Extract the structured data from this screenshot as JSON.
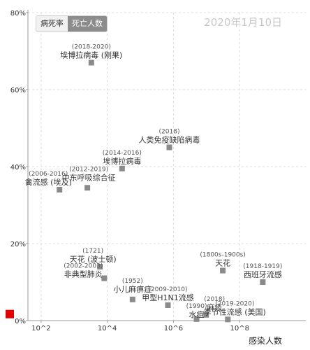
{
  "controls": {
    "tab_case_fatality": "病死率",
    "tab_deaths": "死亡人数",
    "selected": "死亡人数"
  },
  "date_label": "2020年1月10日",
  "chart_data": {
    "type": "scatter",
    "xlabel": "感染人数",
    "ylabel": "",
    "xscale": "log",
    "xlim": [
      40,
      10000000000
    ],
    "ylim": [
      0,
      0.8
    ],
    "x_ticks": [
      {
        "value": 100,
        "label": "10^2"
      },
      {
        "value": 10000,
        "label": "10^4"
      },
      {
        "value": 1000000,
        "label": "10^6"
      },
      {
        "value": 100000000,
        "label": "10^8"
      }
    ],
    "y_ticks": [
      {
        "value": 0,
        "label": "0%"
      },
      {
        "value": 0.2,
        "label": "20%"
      },
      {
        "value": 0.4,
        "label": "40%"
      },
      {
        "value": 0.6,
        "label": "60%"
      },
      {
        "value": 0.8,
        "label": "80%"
      }
    ],
    "grid": true,
    "colors": {
      "points": "#8a8a8a",
      "highlight": "#e00000",
      "grid": "#dddddd"
    },
    "highlight_point": {
      "x": 41,
      "y": 0.017
    },
    "points": [
      {
        "name": "埃博拉病毒 (刚果)",
        "years": "(2018-2020)",
        "x": 3300,
        "y": 0.67
      },
      {
        "name": "人类免疫缺陷病毒",
        "years": "(2018)",
        "x": 750000,
        "y": 0.45
      },
      {
        "name": "埃博拉病毒",
        "years": "(2014-2016)",
        "x": 28000,
        "y": 0.395
      },
      {
        "name": "中东呼吸综合征",
        "years": "(2012-2019)",
        "x": 2500,
        "y": 0.345
      },
      {
        "name": "禽流感 (埃及)",
        "years": "(2006-2016)",
        "x": 360,
        "y": 0.34
      },
      {
        "name": "天花 (波士顿)",
        "years": "(1721)",
        "x": 6000,
        "y": 0.14
      },
      {
        "name": "非典型肺炎",
        "years": "(2002-2003)",
        "x": 8100,
        "y": 0.11
      },
      {
        "name": "小儿麻痹症",
        "years": "(1952)",
        "x": 58000,
        "y": 0.055
      },
      {
        "name": "甲型H1N1流感",
        "years": "(2009-2010)",
        "x": 680000,
        "y": 0.04
      },
      {
        "name": "天花",
        "years": "(1800s-1900s)",
        "x": 31000000,
        "y": 0.13
      },
      {
        "name": "西班牙流感",
        "years": "(1918-1919)",
        "x": 500000000,
        "y": 0.1
      },
      {
        "name": "麻疹",
        "years": "(2018)",
        "x": 9700000,
        "y": 0.015
      },
      {
        "name": "水痘",
        "years": "(1990)",
        "x": 5000000,
        "y": 0.004
      },
      {
        "name": "季节性流感 (美国)",
        "years": "(2019-2020)",
        "x": 44000000,
        "y": 0.003
      }
    ]
  }
}
